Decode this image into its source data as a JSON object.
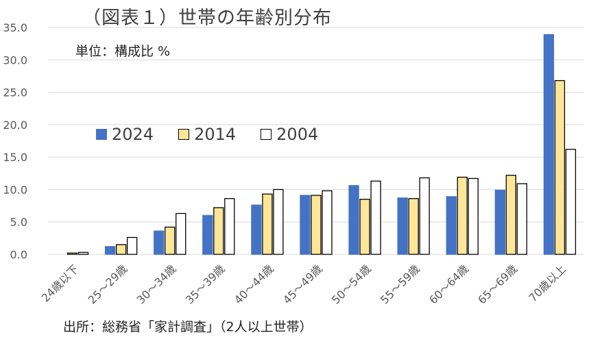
{
  "title": "（図表１）世帯の年齢別分布",
  "unit_label": "単位：構成比 %",
  "source": "出所：総務省「家計調査」（2人以上世帯）",
  "colors": {
    "s2024": "#4472C4",
    "s2014": "#FFE699",
    "s2004": "#FFFFFF",
    "grid": "#D9D9D9",
    "axis_text": "#595959"
  },
  "chart_data": {
    "type": "bar",
    "title": "（図表１）世帯の年齢別分布",
    "ylabel": "単位：構成比 %",
    "xlabel": "",
    "ylim": [
      0,
      35
    ],
    "yticks": [
      "0.0",
      "5.0",
      "10.0",
      "15.0",
      "20.0",
      "25.0",
      "30.0",
      "35.0"
    ],
    "grid": true,
    "legend_position": "center-left",
    "categories": [
      "24歳以下",
      "25～29歳",
      "30～34歳",
      "35～39歳",
      "40～44歳",
      "45～49歳",
      "50～54歳",
      "55～59歳",
      "60～64歳",
      "65～69歳",
      "70歳以上"
    ],
    "series": [
      {
        "name": "2024",
        "values": [
          0.0,
          1.2,
          3.6,
          6.0,
          7.6,
          9.1,
          10.6,
          8.7,
          8.9,
          9.9,
          33.9
        ]
      },
      {
        "name": "2014",
        "values": [
          0.2,
          1.5,
          4.2,
          7.2,
          9.3,
          9.1,
          8.5,
          8.6,
          11.9,
          12.2,
          26.8
        ]
      },
      {
        "name": "2004",
        "values": [
          0.3,
          2.6,
          6.3,
          8.6,
          10.0,
          9.8,
          11.3,
          11.8,
          11.7,
          10.9,
          16.2
        ]
      }
    ]
  }
}
